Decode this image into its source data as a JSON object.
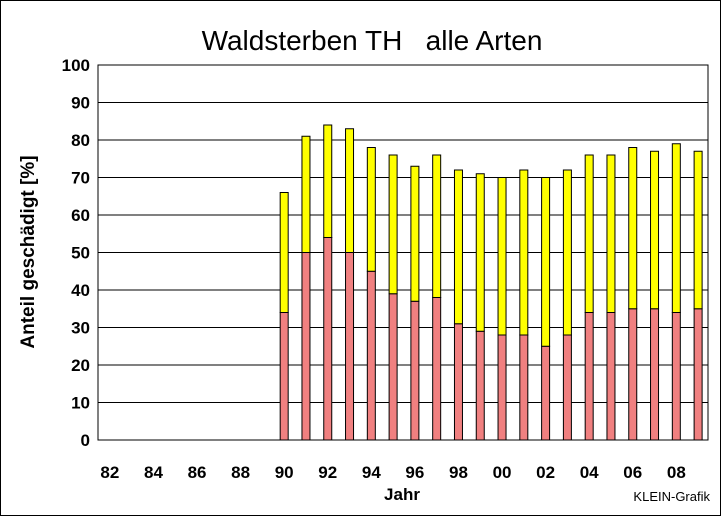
{
  "chart_data": {
    "type": "bar",
    "stacked": true,
    "title": "Waldsterben TH   alle Arten",
    "xlabel": "Jahr",
    "ylabel": "Anteil geschädigt [%]",
    "ylim": [
      0,
      100
    ],
    "yticks": [
      0,
      10,
      20,
      30,
      40,
      50,
      60,
      70,
      80,
      90,
      100
    ],
    "grid": true,
    "legend": "none",
    "years": [
      1982,
      1983,
      1984,
      1985,
      1986,
      1987,
      1988,
      1989,
      1990,
      1991,
      1992,
      1993,
      1994,
      1995,
      1996,
      1997,
      1998,
      1999,
      2000,
      2001,
      2002,
      2003,
      2004,
      2005,
      2006,
      2007,
      2008,
      2009
    ],
    "xtick_labels": [
      "82",
      "",
      "84",
      "",
      "86",
      "",
      "88",
      "",
      "90",
      "",
      "92",
      "",
      "94",
      "",
      "96",
      "",
      "98",
      "",
      "00",
      "",
      "02",
      "",
      "04",
      "",
      "06",
      "",
      "08",
      ""
    ],
    "series": [
      {
        "color": "#F08080",
        "values": [
          null,
          null,
          null,
          null,
          null,
          null,
          null,
          null,
          34,
          50,
          54,
          50,
          45,
          39,
          37,
          38,
          31,
          29,
          28,
          28,
          25,
          28,
          34,
          34,
          35,
          35,
          34,
          35
        ]
      },
      {
        "color": "#FFFF00",
        "values": [
          null,
          null,
          null,
          null,
          null,
          null,
          null,
          null,
          32,
          31,
          30,
          33,
          33,
          37,
          36,
          38,
          41,
          42,
          42,
          44,
          45,
          44,
          42,
          42,
          43,
          42,
          45,
          42
        ]
      }
    ],
    "credit": "KLEIN-Grafik"
  },
  "colors": {
    "plot_background": "#FFFFFF",
    "grid": "#000000",
    "bar_outline": "#000000"
  }
}
